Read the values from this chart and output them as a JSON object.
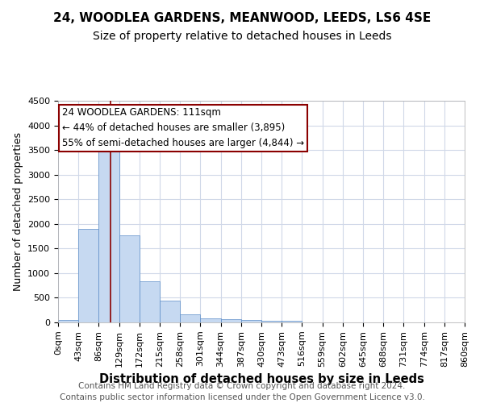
{
  "title1": "24, WOODLEA GARDENS, MEANWOOD, LEEDS, LS6 4SE",
  "title2": "Size of property relative to detached houses in Leeds",
  "xlabel": "Distribution of detached houses by size in Leeds",
  "ylabel": "Number of detached properties",
  "footer": "Contains HM Land Registry data © Crown copyright and database right 2024.\nContains public sector information licensed under the Open Government Licence v3.0.",
  "bin_labels": [
    "0sqm",
    "43sqm",
    "86sqm",
    "129sqm",
    "172sqm",
    "215sqm",
    "258sqm",
    "301sqm",
    "344sqm",
    "387sqm",
    "430sqm",
    "473sqm",
    "516sqm",
    "559sqm",
    "602sqm",
    "645sqm",
    "688sqm",
    "731sqm",
    "774sqm",
    "817sqm",
    "860sqm"
  ],
  "bar_values": [
    50,
    1900,
    3500,
    1775,
    830,
    450,
    160,
    90,
    70,
    50,
    35,
    30,
    0,
    0,
    0,
    0,
    0,
    0,
    0,
    0
  ],
  "bar_color": "#c6d9f1",
  "bar_edge_color": "#5b8dc8",
  "property_line_x": 2.58,
  "property_line_color": "#8b0000",
  "ylim": [
    0,
    4500
  ],
  "annotation_text": "24 WOODLEA GARDENS: 111sqm\n← 44% of detached houses are smaller (3,895)\n55% of semi-detached houses are larger (4,844) →",
  "annotation_box_color": "#8b0000",
  "bg_color": "#ffffff",
  "grid_color": "#d0d8e8",
  "title1_fontsize": 11,
  "title2_fontsize": 10,
  "axis_label_fontsize": 9,
  "tick_fontsize": 8,
  "annotation_fontsize": 8.5,
  "footer_fontsize": 7.5
}
